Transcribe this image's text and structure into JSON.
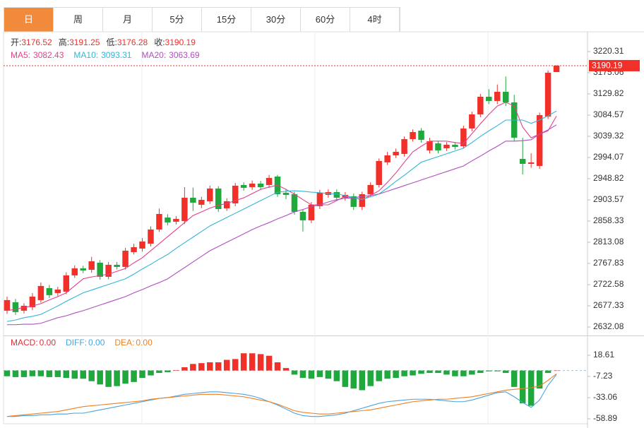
{
  "tabs": [
    "日",
    "周",
    "月",
    "5分",
    "15分",
    "30分",
    "60分",
    "4时"
  ],
  "active_tab": 0,
  "chart_data": [
    {
      "type": "candlestick",
      "ohlc_labels": [
        "开:",
        "高:",
        "低:",
        "收:"
      ],
      "up_color": "#f2302a",
      "down_color": "#1fa83b",
      "label_color": "#333333",
      "open": [
        2666.9,
        2684.9,
        2666.9,
        2674.4,
        2689.5,
        2715.1,
        2704.6,
        2707.6,
        2742.3,
        2757.4,
        2754.3,
        2769.4,
        2739.3,
        2764.9,
        2760.4,
        2792.0,
        2799.6,
        2810.1,
        2840.3,
        2865.9,
        2856.9,
        2858.4,
        2908.2,
        2893.1,
        2900.6,
        2927.8,
        2885.5,
        2896.1,
        2935.3,
        2930.8,
        2938.3,
        2935.3,
        2953.4,
        2918.7,
        2915.7,
        2878.0,
        2859.9,
        2890.1,
        2914.2,
        2920.2,
        2908.2,
        2911.2,
        2888.6,
        2915.7,
        2935.3,
        2983.6,
        2998.6,
        3001.7,
        3033.3,
        3051.4,
        3009.2,
        3024.3,
        3013.7,
        3021.3,
        3018.2,
        3056.0,
        3086.1,
        3123.8,
        3114.8,
        3134.4,
        3111.7,
        2991.1,
        2980.5,
        2976.0,
        3081.6,
        3176.52
      ],
      "high": [
        2697.0,
        2692.0,
        2683.0,
        2704.6,
        2727.0,
        2722.0,
        2718.0,
        2749.0,
        2764.0,
        2763.0,
        2782.0,
        2775.0,
        2771.0,
        2771.0,
        2801.0,
        2810.0,
        2822.0,
        2847.0,
        2885.0,
        2873.0,
        2869.0,
        2930.8,
        2930.0,
        2910.0,
        2934.0,
        2933.0,
        2907.0,
        2940.0,
        2941.0,
        2945.0,
        2944.0,
        2957.0,
        2957.0,
        2925.0,
        2921.0,
        2884.0,
        2899.0,
        2925.0,
        2926.0,
        2926.0,
        2920.0,
        2917.0,
        2921.0,
        2941.0,
        2992.0,
        3006.0,
        3013.0,
        3039.0,
        3054.0,
        3057.0,
        3036.0,
        3030.0,
        3027.0,
        3027.0,
        3062.0,
        3092.0,
        3130.0,
        3140.0,
        3150.0,
        3167.0,
        3128.0,
        3036.0,
        3003.0,
        3090.0,
        3180.0,
        3191.25
      ],
      "low": [
        2660.0,
        2658.0,
        2661.0,
        2668.0,
        2684.0,
        2694.0,
        2698.0,
        2702.0,
        2737.0,
        2747.0,
        2748.0,
        2733.0,
        2734.0,
        2755.0,
        2755.0,
        2787.0,
        2793.0,
        2804.0,
        2835.0,
        2849.0,
        2851.0,
        2852.0,
        2880.0,
        2886.0,
        2895.0,
        2878.0,
        2880.0,
        2890.0,
        2923.0,
        2925.0,
        2925.0,
        2929.0,
        2910.0,
        2905.0,
        2872.0,
        2836.0,
        2854.0,
        2884.0,
        2908.0,
        2902.0,
        2902.0,
        2882.0,
        2882.0,
        2910.0,
        2930.0,
        2978.0,
        2993.0,
        2996.0,
        3028.0,
        3026.0,
        3003.0,
        3003.0,
        3008.0,
        3011.0,
        3013.0,
        3050.0,
        3080.0,
        3108.0,
        3108.0,
        3104.0,
        3028.0,
        2958.0,
        2972.0,
        2970.0,
        3076.0,
        3176.28
      ],
      "close": [
        2689.5,
        2663.9,
        2677.4,
        2697.0,
        2719.7,
        2700.1,
        2712.1,
        2742.3,
        2757.4,
        2752.8,
        2772.4,
        2739.3,
        2764.9,
        2760.4,
        2795.1,
        2802.6,
        2814.7,
        2840.3,
        2873.5,
        2855.4,
        2862.9,
        2908.2,
        2897.6,
        2903.6,
        2927.8,
        2884.0,
        2900.6,
        2933.8,
        2929.3,
        2938.3,
        2930.8,
        2950.4,
        2915.7,
        2914.2,
        2878.0,
        2859.9,
        2893.1,
        2918.7,
        2920.2,
        2908.2,
        2914.2,
        2888.6,
        2915.7,
        2935.3,
        2986.6,
        2998.6,
        3006.2,
        3033.3,
        3048.4,
        3031.8,
        3028.8,
        3009.2,
        3021.3,
        3016.7,
        3056.0,
        3086.1,
        3123.8,
        3114.8,
        3134.4,
        3111.7,
        3036.4,
        2980.5,
        2983.6,
        3084.6,
        3175.1,
        3190.19
      ],
      "series": [
        {
          "name": "MA5:",
          "color": "#e5408a",
          "values": [
            2667,
            2670,
            2674,
            2677,
            2682,
            2690,
            2697,
            2705,
            2720,
            2735,
            2739,
            2742,
            2745,
            2751,
            2757,
            2769,
            2780,
            2795,
            2810,
            2825,
            2840,
            2855,
            2870,
            2878,
            2886,
            2892,
            2896,
            2902,
            2908,
            2917,
            2926,
            2931,
            2935,
            2926,
            2916,
            2904,
            2893,
            2893,
            2893,
            2902,
            2911,
            2908,
            2904,
            2913,
            2923,
            2941,
            2961,
            2984,
            3006,
            3018,
            3029,
            3029,
            3029,
            3026,
            3024,
            3045,
            3066,
            3086,
            3104,
            3112,
            3104,
            3059,
            3036,
            3044,
            3051,
            3082.43
          ]
        },
        {
          "name": "MA10:",
          "color": "#33b5d6",
          "values": [
            2644,
            2647,
            2652,
            2655,
            2659,
            2668,
            2677,
            2687,
            2696,
            2705,
            2711,
            2717,
            2723,
            2729,
            2735,
            2745,
            2756,
            2766,
            2777,
            2787,
            2800,
            2812,
            2824,
            2836,
            2848,
            2857,
            2866,
            2875,
            2884,
            2893,
            2902,
            2911,
            2920,
            2922,
            2923,
            2922,
            2920,
            2919,
            2917,
            2916,
            2913,
            2908,
            2905,
            2910,
            2916,
            2929,
            2943,
            2956,
            2970,
            2984,
            2990,
            2996,
            3002,
            3008,
            3014,
            3026,
            3039,
            3051,
            3062,
            3074,
            3074,
            3074,
            3067,
            3074,
            3083,
            3093.31
          ]
        },
        {
          "name": "MA20:",
          "color": "#b04fc0",
          "values": [
            2637,
            2637,
            2638,
            2638,
            2640,
            2646,
            2652,
            2656,
            2662,
            2667,
            2673,
            2679,
            2685,
            2691,
            2697,
            2705,
            2712,
            2720,
            2727,
            2735,
            2747,
            2759,
            2771,
            2783,
            2795,
            2804,
            2813,
            2822,
            2831,
            2840,
            2848,
            2855,
            2863,
            2870,
            2878,
            2883,
            2889,
            2893,
            2899,
            2904,
            2907,
            2908,
            2911,
            2913,
            2916,
            2922,
            2928,
            2934,
            2940,
            2946,
            2952,
            2958,
            2964,
            2970,
            2976,
            2987,
            2997,
            3008,
            3018,
            3029,
            3029,
            3030,
            3032,
            3044,
            3053,
            3063.69
          ]
        }
      ],
      "ylim": [
        2614.0,
        3262.5
      ],
      "yticks": [
        3220.31,
        3175.06,
        3129.82,
        3084.57,
        3039.32,
        2994.07,
        2948.82,
        2903.57,
        2858.33,
        2813.08,
        2767.83,
        2722.58,
        2677.33,
        2632.08
      ],
      "last_price_line": true
    },
    {
      "type": "macd",
      "histogram": {
        "name": "MACD:",
        "legend_label": "0.00",
        "color": "#e0303a",
        "values": [
          -7,
          -8,
          -8,
          -7,
          -7,
          -8,
          -8,
          -9,
          -10,
          -10,
          -13,
          -17,
          -20,
          -19,
          -16,
          -14,
          -9,
          -6,
          -3,
          -2,
          0.5,
          4,
          8,
          9,
          10,
          10,
          13,
          14,
          21,
          21,
          20,
          18,
          10,
          3,
          -5,
          -9,
          -10,
          -8,
          -10,
          -13,
          -20,
          -22,
          -24,
          -19,
          -13,
          -10,
          -9,
          -7,
          -6,
          -4,
          -3,
          -3,
          -5,
          -7,
          -7,
          -5,
          -3,
          -1,
          -1,
          -3,
          -20,
          -40,
          -43,
          -22,
          -3,
          0
        ]
      },
      "up_color": "#f2302a",
      "down_color": "#1fa83b",
      "series": [
        {
          "name": "DIFF:",
          "legend_label": "0.00",
          "color": "#4aa3df",
          "values": [
            -56,
            -56,
            -55,
            -55,
            -54,
            -54,
            -53,
            -53,
            -52,
            -52,
            -50,
            -48,
            -46,
            -44,
            -42,
            -40,
            -38,
            -36,
            -34,
            -33,
            -31,
            -29,
            -28,
            -27,
            -26,
            -26,
            -27,
            -28,
            -29,
            -31,
            -34,
            -38,
            -42,
            -47,
            -52,
            -55,
            -56,
            -56,
            -55,
            -54,
            -52,
            -49,
            -46,
            -43,
            -40,
            -38,
            -37,
            -36,
            -35,
            -35,
            -35,
            -36,
            -37,
            -38,
            -38,
            -36,
            -33,
            -30,
            -27,
            -26,
            -32,
            -39,
            -45,
            -36,
            -18,
            -5
          ]
        },
        {
          "name": "DEA:",
          "legend_label": "0.00",
          "color": "#ef7f22",
          "values": [
            -56,
            -55,
            -54,
            -53,
            -52,
            -51,
            -50,
            -48,
            -46,
            -44,
            -43,
            -42,
            -41,
            -40,
            -39,
            -38,
            -37,
            -35,
            -34,
            -33,
            -32,
            -31,
            -30,
            -29,
            -29,
            -29,
            -30,
            -31,
            -32,
            -34,
            -36,
            -38,
            -41,
            -45,
            -49,
            -51,
            -52,
            -53,
            -53,
            -52,
            -51,
            -50,
            -49,
            -48,
            -46,
            -44,
            -42,
            -40,
            -38,
            -37,
            -36,
            -35,
            -35,
            -34,
            -33,
            -32,
            -30,
            -28,
            -26,
            -24,
            -23,
            -22,
            -21,
            -19,
            -12,
            -4
          ]
        }
      ],
      "ylim": [
        -64.92,
        41.86
      ],
      "yticks": [
        18.61,
        -7.23,
        -33.06,
        -58.89
      ],
      "zero_line": true
    }
  ]
}
